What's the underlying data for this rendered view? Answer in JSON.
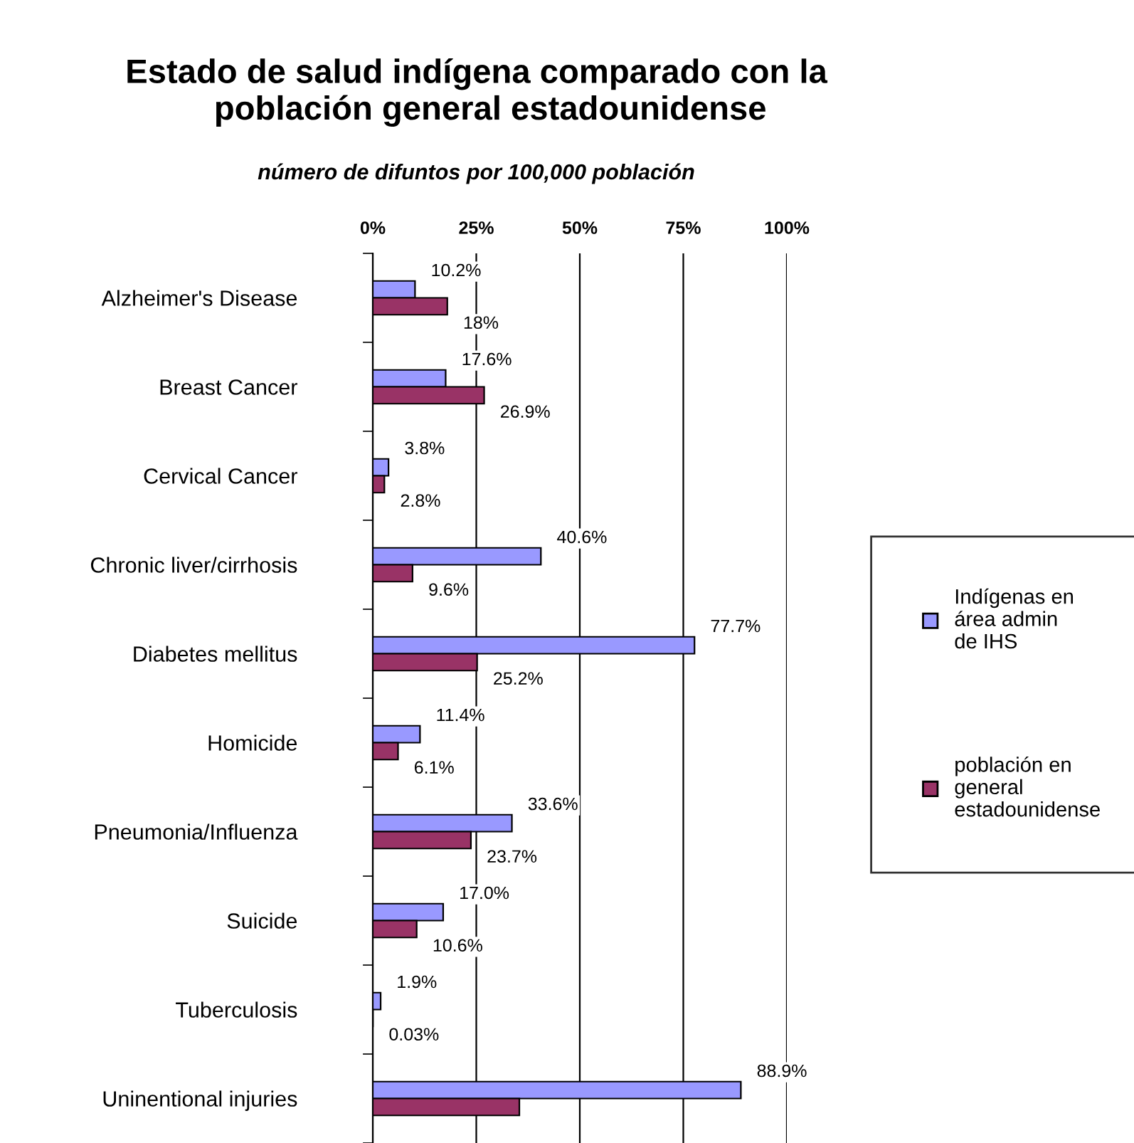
{
  "chart_data": {
    "type": "bar",
    "orientation": "horizontal",
    "title": "Estado de salud indígena comparado con la\n   población general estadounidense",
    "subtitle": "número de difuntos por 100,000 población",
    "categories": [
      "Alzheimer's Disease",
      "Breast Cancer",
      "Cervical Cancer",
      "Chronic liver/cirrhosis",
      "Diabetes mellitus",
      "Homicide",
      "Pneumonia/Influenza",
      "Suicide",
      "Tuberculosis",
      "Uninentional injuries"
    ],
    "series": [
      {
        "name": "Indígenas en\nárea admin\nde IHS",
        "color": "#9999ff",
        "values": [
          10.2,
          17.6,
          3.8,
          40.6,
          77.7,
          11.4,
          33.6,
          17.0,
          1.9,
          88.9
        ],
        "value_labels": [
          "10.2%",
          "17.6%",
          "3.8%",
          "40.6%",
          "77.7%",
          "11.4%",
          "33.6%",
          "17.0%",
          "1.9%",
          "88.9%"
        ]
      },
      {
        "name": "población en\ngeneral\nestadounidense",
        "color": "#993366",
        "values": [
          18,
          26.9,
          2.8,
          9.6,
          25.2,
          6.1,
          23.7,
          10.6,
          0.03,
          35.4
        ],
        "value_labels": [
          "18%",
          "26.9%",
          "2.8%",
          "9.6%",
          "25.2%",
          "6.1%",
          "23.7%",
          "10.6%",
          "0.03%",
          null
        ]
      }
    ],
    "xlim": [
      0,
      100
    ],
    "xticks": [
      {
        "value": 0,
        "label": "0%"
      },
      {
        "value": 25,
        "label": "25%"
      },
      {
        "value": 50,
        "label": "50%"
      },
      {
        "value": 75,
        "label": "75%"
      },
      {
        "value": 100,
        "label": "100%"
      }
    ],
    "grid": "x",
    "legend": "right"
  }
}
